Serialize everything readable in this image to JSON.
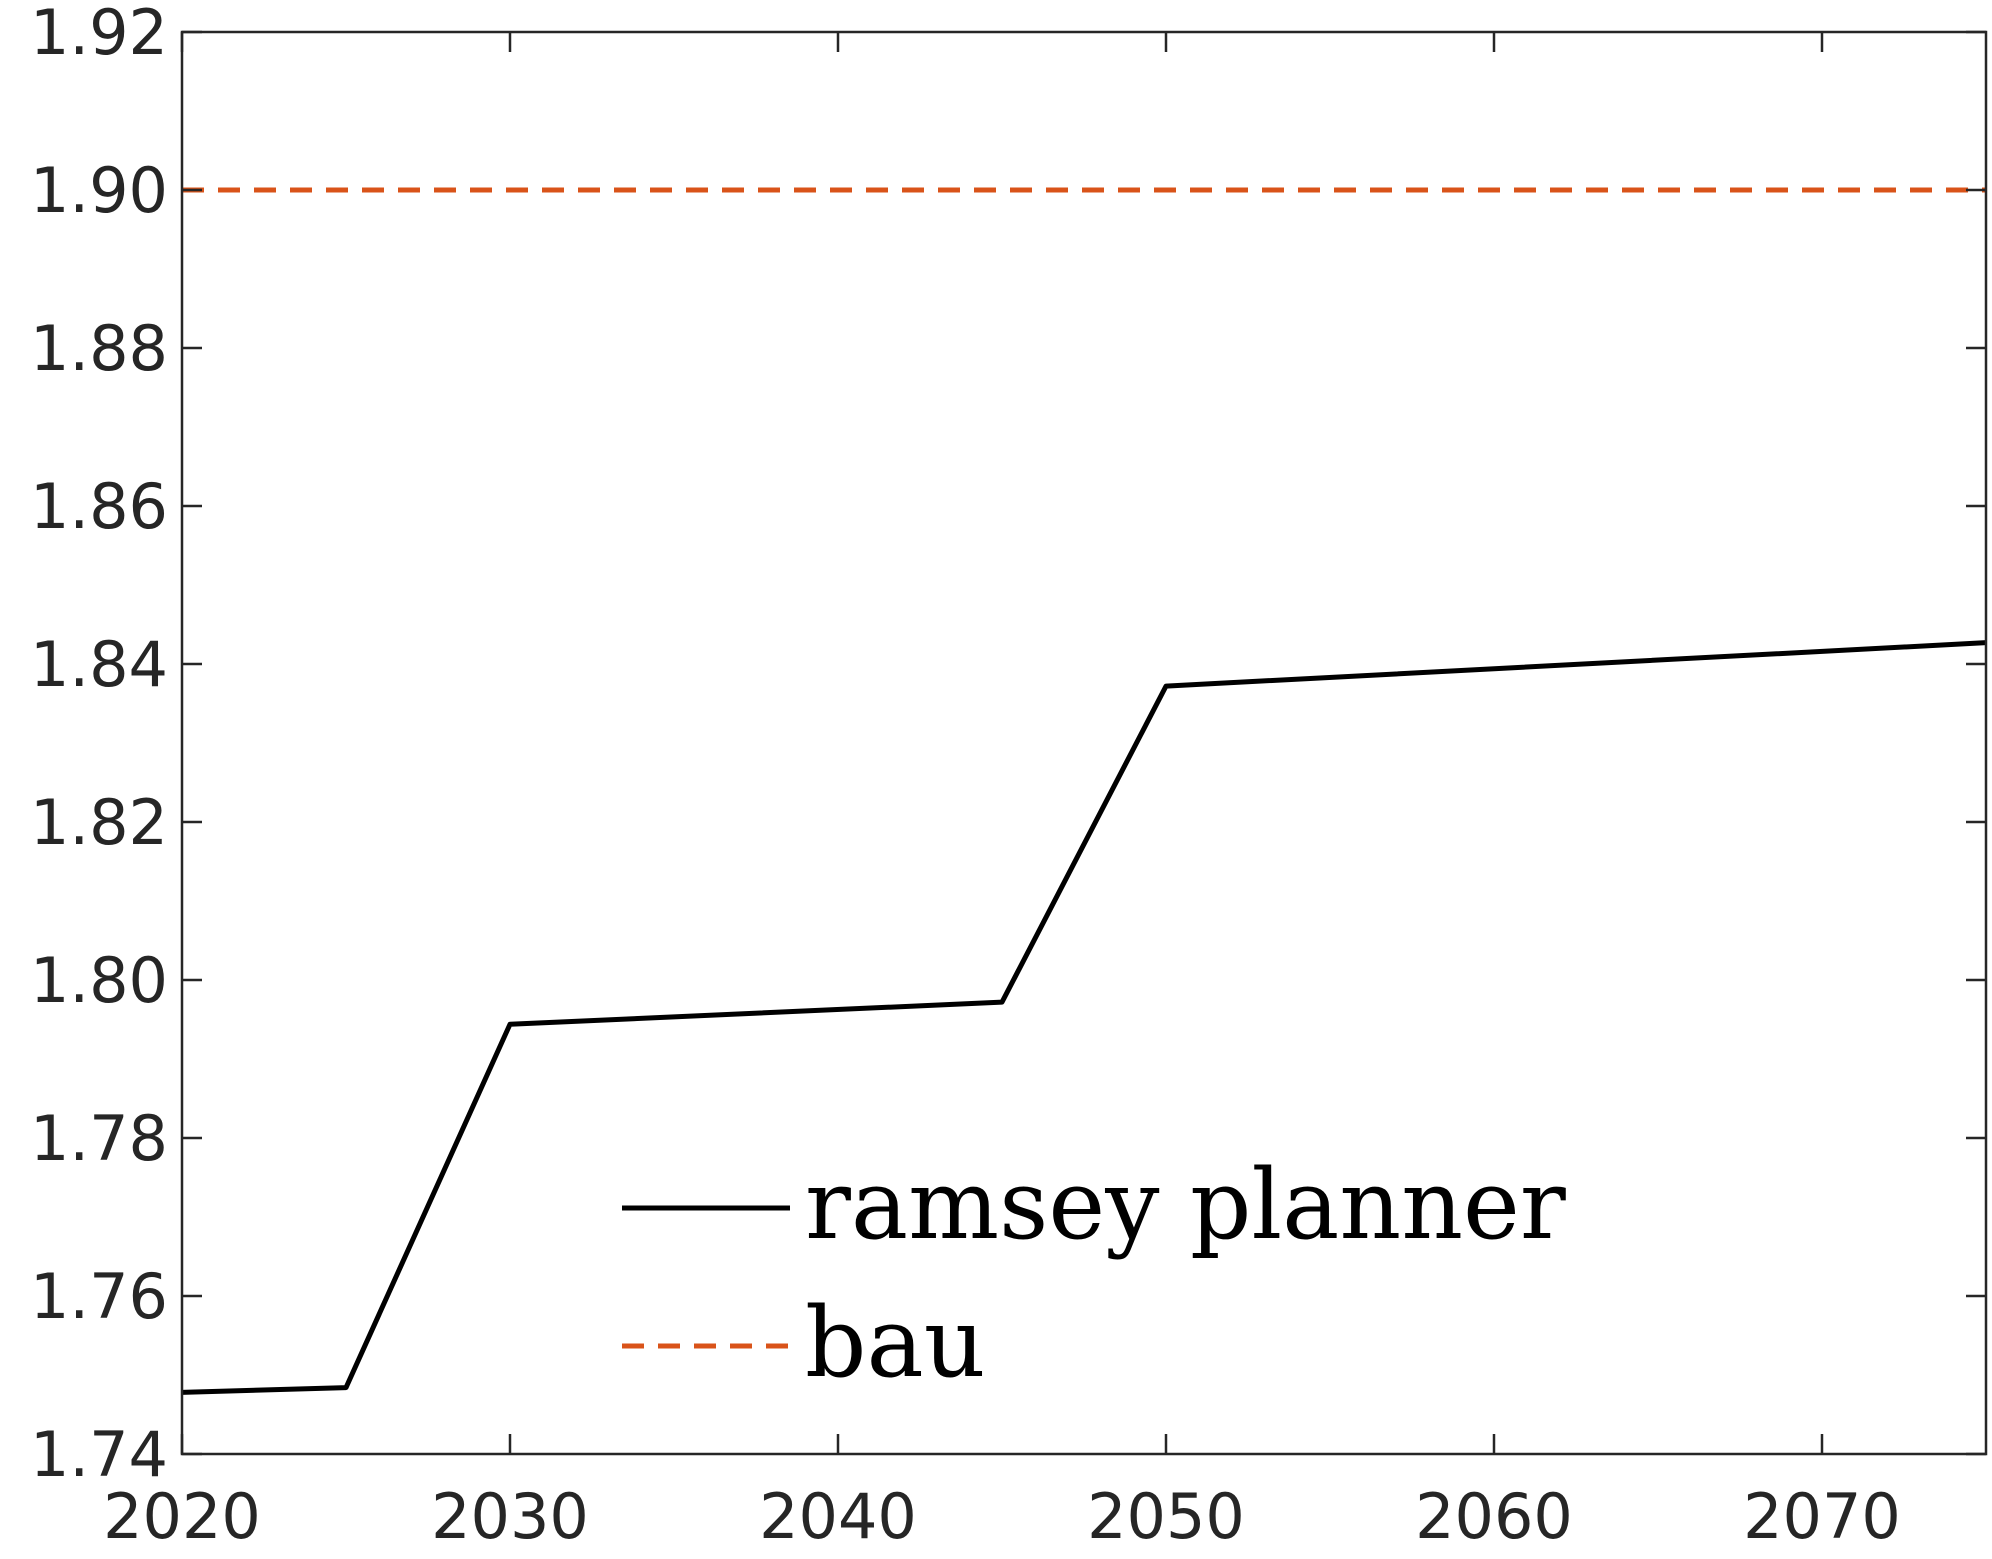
{
  "chart_data": {
    "type": "line",
    "title": "",
    "xlabel": "",
    "ylabel": "",
    "xlim": [
      2020,
      2075
    ],
    "ylim": [
      1.74,
      1.92
    ],
    "x_ticks": [
      "2020",
      "2030",
      "2040",
      "2050",
      "2060",
      "2070"
    ],
    "y_ticks": [
      "1.74",
      "1.76",
      "1.78",
      "1.80",
      "1.82",
      "1.84",
      "1.86",
      "1.88",
      "1.90",
      "1.92"
    ],
    "grid": false,
    "legend_position": "bottom-center",
    "series": [
      {
        "name": "ramsey planner",
        "style": "solid",
        "color": "#000000",
        "x": [
          2020,
          2025,
          2030,
          2045,
          2050,
          2075
        ],
        "y": [
          1.7478,
          1.7484,
          1.7944,
          1.7972,
          1.8372,
          1.8427
        ]
      },
      {
        "name": "bau",
        "style": "dashed",
        "color": "#D95319",
        "x": [
          2020,
          2075
        ],
        "y": [
          1.9,
          1.9
        ]
      }
    ]
  }
}
